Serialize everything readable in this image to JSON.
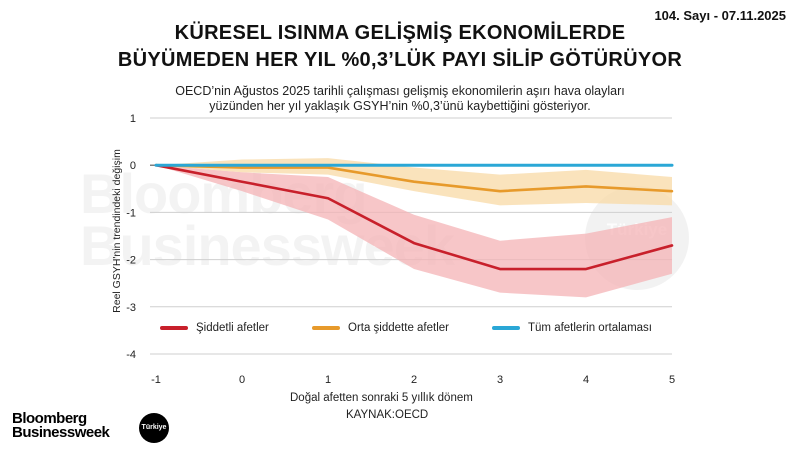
{
  "header": {
    "issue": "104. Sayı - 07.11.2025",
    "title_line1": "KÜRESEL ISINMA GELİŞMİŞ EKONOMİLERDE",
    "title_line2": "BÜYÜMEDEN HER YIL %0,3’LÜK PAYI SİLİP GÖTÜRÜYOR",
    "subtitle_line1": "OECD’nin Ağustos 2025 tarihli çalışması  gelişmiş ekonomilerin aşırı hava olayları",
    "subtitle_line2": "yüzünden her yıl yaklaşık GSYH’nin %0,3’ünü kaybettiğini gösteriyor."
  },
  "watermark": {
    "line1": "Bloomberg",
    "line2": "Businessweek",
    "badge": "Türkiye"
  },
  "chart_data": {
    "type": "line",
    "x": [
      -1,
      0,
      1,
      2,
      3,
      4,
      5
    ],
    "xlim": [
      -1,
      5
    ],
    "ylim": [
      -4,
      1
    ],
    "xticks": [
      "-1",
      "0",
      "1",
      "2",
      "3",
      "4",
      "5"
    ],
    "yticks": [
      "1",
      "0",
      "-1",
      "-2",
      "-3",
      "-4"
    ],
    "ytick_values": [
      1,
      0,
      -1,
      -2,
      -3,
      -4
    ],
    "xlabel": "Doğal afetten sonraki 5 yıllık dönem",
    "ylabel": "Reel GSYH'nin trendindeki değişim",
    "grid": true,
    "legend_position": "bottom",
    "series": [
      {
        "name": "Şiddetli afetler",
        "color": "#c8202b",
        "band_color": "#f4b3b6",
        "values": [
          0,
          -0.35,
          -0.7,
          -1.65,
          -2.2,
          -2.2,
          -1.7
        ],
        "lower": [
          0,
          -0.55,
          -1.15,
          -2.2,
          -2.7,
          -2.8,
          -2.3
        ],
        "upper": [
          0,
          -0.15,
          -0.25,
          -1.05,
          -1.6,
          -1.45,
          -1.1
        ]
      },
      {
        "name": "Orta şiddette afetler",
        "color": "#e79a2b",
        "band_color": "#f8d9a6",
        "values": [
          0,
          -0.05,
          -0.05,
          -0.35,
          -0.55,
          -0.45,
          -0.55
        ],
        "lower": [
          0,
          -0.15,
          -0.2,
          -0.55,
          -0.85,
          -0.8,
          -0.85
        ],
        "upper": [
          0,
          0.12,
          0.15,
          -0.05,
          -0.2,
          -0.1,
          -0.25
        ]
      },
      {
        "name": "Tüm afetlerin ortalaması",
        "color": "#2aa7d6",
        "values": [
          0,
          0,
          0,
          0,
          0,
          0,
          0
        ]
      }
    ]
  },
  "footer": {
    "source": "KAYNAK:OECD",
    "logo_line1": "Bloomberg",
    "logo_line2": "Businessweek",
    "logo_badge": "Türkiye"
  }
}
